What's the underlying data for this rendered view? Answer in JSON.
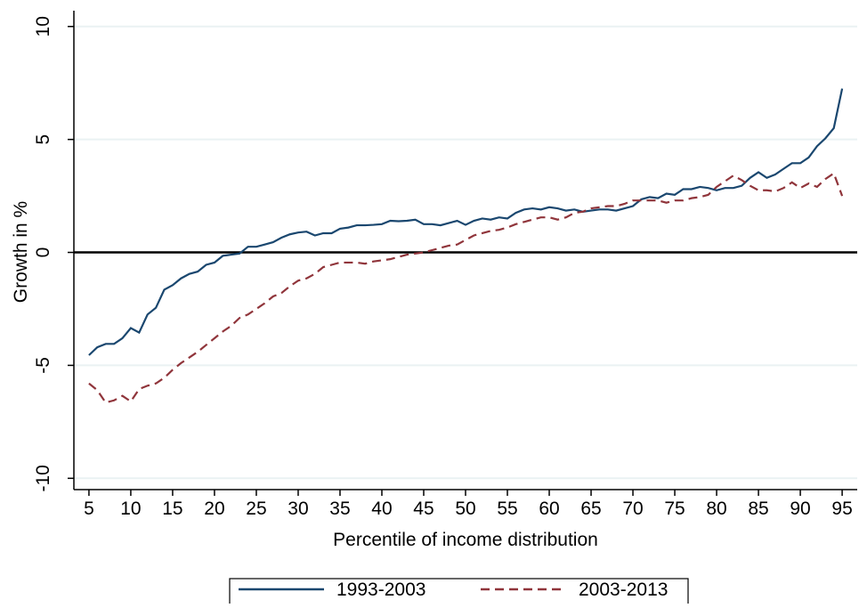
{
  "chart_data": {
    "type": "line",
    "x_label": "Percentile of income distribution",
    "y_label": "Growth in %",
    "x": [
      5,
      6,
      7,
      8,
      9,
      10,
      11,
      12,
      13,
      14,
      15,
      16,
      17,
      18,
      19,
      20,
      21,
      22,
      23,
      24,
      25,
      26,
      27,
      28,
      29,
      30,
      31,
      32,
      33,
      34,
      35,
      36,
      37,
      38,
      39,
      40,
      41,
      42,
      43,
      44,
      45,
      46,
      47,
      48,
      49,
      50,
      51,
      52,
      53,
      54,
      55,
      56,
      57,
      58,
      59,
      60,
      61,
      62,
      63,
      64,
      65,
      66,
      67,
      68,
      69,
      70,
      71,
      72,
      73,
      74,
      75,
      76,
      77,
      78,
      79,
      80,
      81,
      82,
      83,
      84,
      85,
      86,
      87,
      88,
      89,
      90,
      91,
      92,
      93,
      94,
      95
    ],
    "series": [
      {
        "name": "1993-2003",
        "color": "#1a476f",
        "dash": false,
        "values": [
          -4.55,
          -4.2,
          -4.05,
          -4.05,
          -3.8,
          -3.35,
          -3.55,
          -2.75,
          -2.45,
          -1.65,
          -1.45,
          -1.15,
          -0.95,
          -0.85,
          -0.55,
          -0.45,
          -0.15,
          -0.1,
          -0.05,
          0.25,
          0.25,
          0.35,
          0.45,
          0.65,
          0.8,
          0.88,
          0.92,
          0.75,
          0.85,
          0.85,
          1.05,
          1.1,
          1.2,
          1.2,
          1.22,
          1.25,
          1.4,
          1.38,
          1.4,
          1.45,
          1.25,
          1.25,
          1.2,
          1.3,
          1.4,
          1.22,
          1.4,
          1.5,
          1.45,
          1.55,
          1.5,
          1.75,
          1.9,
          1.95,
          1.9,
          2.0,
          1.95,
          1.85,
          1.9,
          1.8,
          1.85,
          1.9,
          1.9,
          1.85,
          1.95,
          2.05,
          2.35,
          2.45,
          2.4,
          2.6,
          2.55,
          2.8,
          2.8,
          2.9,
          2.85,
          2.75,
          2.85,
          2.85,
          2.95,
          3.3,
          3.55,
          3.3,
          3.45,
          3.7,
          3.95,
          3.95,
          4.2,
          4.7,
          5.05,
          5.5,
          7.25
        ]
      },
      {
        "name": "2003-2013",
        "color": "#90353b",
        "dash": true,
        "values": [
          -5.8,
          -6.1,
          -6.65,
          -6.55,
          -6.35,
          -6.6,
          -6.05,
          -5.9,
          -5.8,
          -5.55,
          -5.2,
          -4.9,
          -4.65,
          -4.4,
          -4.1,
          -3.8,
          -3.5,
          -3.25,
          -2.9,
          -2.75,
          -2.5,
          -2.25,
          -1.95,
          -1.8,
          -1.5,
          -1.25,
          -1.15,
          -0.95,
          -0.65,
          -0.55,
          -0.45,
          -0.45,
          -0.45,
          -0.5,
          -0.4,
          -0.35,
          -0.3,
          -0.2,
          -0.1,
          -0.05,
          0.0,
          0.1,
          0.2,
          0.3,
          0.35,
          0.55,
          0.75,
          0.85,
          0.95,
          1.0,
          1.1,
          1.25,
          1.35,
          1.45,
          1.55,
          1.55,
          1.45,
          1.55,
          1.75,
          1.8,
          1.95,
          2.0,
          2.05,
          2.05,
          2.15,
          2.3,
          2.3,
          2.3,
          2.3,
          2.2,
          2.3,
          2.3,
          2.4,
          2.45,
          2.55,
          2.9,
          3.15,
          3.4,
          3.2,
          2.95,
          2.75,
          2.75,
          2.7,
          2.85,
          3.1,
          2.85,
          3.05,
          2.9,
          3.25,
          3.5,
          2.5
        ]
      }
    ],
    "xlim": [
      3.2,
      96.8
    ],
    "xticks": [
      5,
      10,
      15,
      20,
      25,
      30,
      35,
      40,
      45,
      50,
      55,
      60,
      65,
      70,
      75,
      80,
      85,
      90,
      95
    ],
    "ylim": [
      -10.5,
      10.7
    ],
    "yticks": [
      -10,
      -5,
      0,
      5,
      10
    ],
    "grid": true,
    "zero_line": true,
    "legend": "bottom"
  }
}
